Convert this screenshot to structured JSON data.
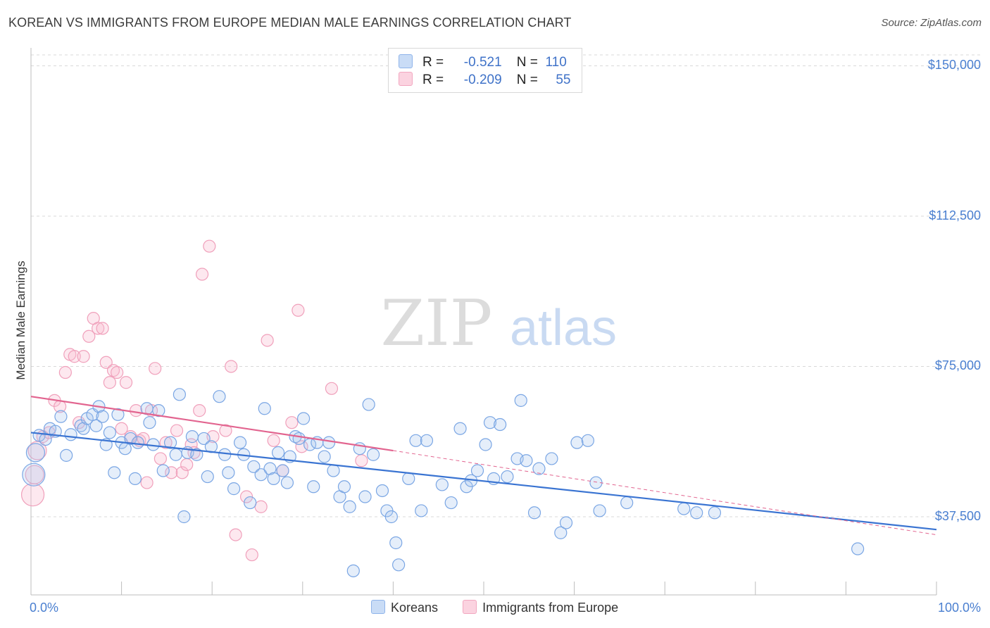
{
  "title": "KOREAN VS IMMIGRANTS FROM EUROPE MEDIAN MALE EARNINGS CORRELATION CHART",
  "source": "Source: ZipAtlas.com",
  "watermark": {
    "zip": "ZIP",
    "atlas": "atlas"
  },
  "stats": {
    "row1": {
      "r_label": "R =",
      "r_value": "-0.521",
      "n_label": "N =",
      "n_value": "110",
      "color": "#8fb4ea"
    },
    "row2": {
      "r_label": "R =",
      "r_value": "-0.209",
      "n_label": "N =",
      "n_value": "55",
      "color": "#f2a7c0"
    }
  },
  "legend": [
    {
      "label": "Koreans",
      "color": "#8fb4ea"
    },
    {
      "label": "Immigrants from Europe",
      "color": "#f2a7c0"
    }
  ],
  "chart_data": {
    "type": "scatter",
    "title": "KOREAN VS IMMIGRANTS FROM EUROPE MEDIAN MALE EARNINGS CORRELATION CHART",
    "xlabel": "",
    "ylabel": "Median Male Earnings",
    "xlim": [
      0,
      100
    ],
    "ylim": [
      18000,
      155000
    ],
    "x_tick_labels": [
      "0.0%",
      "100.0%"
    ],
    "y_ticks": [
      37500,
      75000,
      112500,
      150000
    ],
    "y_tick_labels": [
      "$37,500",
      "$75,000",
      "$112,500",
      "$150,000"
    ],
    "grid": true,
    "legend_position": "bottom-center",
    "series": [
      {
        "name": "Koreans",
        "color": "#8fb4ea",
        "trend": {
          "x": [
            0,
            100
          ],
          "y": [
            58500,
            34300
          ],
          "color": "#3a74d2"
        },
        "points": [
          {
            "x": 0.3,
            "y": 48000,
            "s": 3
          },
          {
            "x": 0.5,
            "y": 53500,
            "s": 2
          },
          {
            "x": 0.9,
            "y": 57800,
            "s": 1
          },
          {
            "x": 1.6,
            "y": 56800,
            "s": 1
          },
          {
            "x": 2.1,
            "y": 59500,
            "s": 1
          },
          {
            "x": 2.7,
            "y": 58800,
            "s": 1
          },
          {
            "x": 3.3,
            "y": 62500,
            "s": 1
          },
          {
            "x": 3.9,
            "y": 52800,
            "s": 1
          },
          {
            "x": 4.4,
            "y": 58000,
            "s": 1
          },
          {
            "x": 5.5,
            "y": 60200,
            "s": 1
          },
          {
            "x": 5.8,
            "y": 59500,
            "s": 1
          },
          {
            "x": 6.2,
            "y": 62000,
            "s": 1
          },
          {
            "x": 6.8,
            "y": 63000,
            "s": 1
          },
          {
            "x": 7.2,
            "y": 60200,
            "s": 1
          },
          {
            "x": 7.5,
            "y": 65000,
            "s": 1
          },
          {
            "x": 7.9,
            "y": 62500,
            "s": 1
          },
          {
            "x": 8.3,
            "y": 55500,
            "s": 1
          },
          {
            "x": 8.7,
            "y": 58500,
            "s": 1
          },
          {
            "x": 9.2,
            "y": 48500,
            "s": 1
          },
          {
            "x": 9.6,
            "y": 63000,
            "s": 1
          },
          {
            "x": 10.0,
            "y": 56000,
            "s": 1
          },
          {
            "x": 10.4,
            "y": 54500,
            "s": 1
          },
          {
            "x": 11.0,
            "y": 57000,
            "s": 1
          },
          {
            "x": 11.5,
            "y": 47000,
            "s": 1
          },
          {
            "x": 11.8,
            "y": 56000,
            "s": 1
          },
          {
            "x": 12.8,
            "y": 64500,
            "s": 1
          },
          {
            "x": 13.1,
            "y": 61000,
            "s": 1
          },
          {
            "x": 13.5,
            "y": 55500,
            "s": 1
          },
          {
            "x": 14.1,
            "y": 64000,
            "s": 1
          },
          {
            "x": 14.6,
            "y": 49000,
            "s": 1
          },
          {
            "x": 15.4,
            "y": 56000,
            "s": 1
          },
          {
            "x": 16.0,
            "y": 53000,
            "s": 1
          },
          {
            "x": 16.4,
            "y": 68000,
            "s": 1
          },
          {
            "x": 16.9,
            "y": 37500,
            "s": 1
          },
          {
            "x": 17.3,
            "y": 53500,
            "s": 1
          },
          {
            "x": 17.8,
            "y": 57500,
            "s": 1
          },
          {
            "x": 18.3,
            "y": 53000,
            "s": 1
          },
          {
            "x": 19.1,
            "y": 57000,
            "s": 1
          },
          {
            "x": 19.5,
            "y": 47500,
            "s": 1
          },
          {
            "x": 19.9,
            "y": 55000,
            "s": 1
          },
          {
            "x": 20.8,
            "y": 67500,
            "s": 1
          },
          {
            "x": 21.4,
            "y": 53000,
            "s": 1
          },
          {
            "x": 21.8,
            "y": 48500,
            "s": 1
          },
          {
            "x": 22.4,
            "y": 44500,
            "s": 1
          },
          {
            "x": 23.1,
            "y": 56000,
            "s": 1
          },
          {
            "x": 23.5,
            "y": 53000,
            "s": 1
          },
          {
            "x": 24.2,
            "y": 41000,
            "s": 1
          },
          {
            "x": 24.6,
            "y": 50000,
            "s": 1
          },
          {
            "x": 25.4,
            "y": 48000,
            "s": 1
          },
          {
            "x": 25.8,
            "y": 64500,
            "s": 1
          },
          {
            "x": 26.4,
            "y": 49500,
            "s": 1
          },
          {
            "x": 26.8,
            "y": 47000,
            "s": 1
          },
          {
            "x": 27.3,
            "y": 53500,
            "s": 1
          },
          {
            "x": 27.8,
            "y": 49000,
            "s": 1
          },
          {
            "x": 28.3,
            "y": 46000,
            "s": 1
          },
          {
            "x": 28.6,
            "y": 52500,
            "s": 1
          },
          {
            "x": 29.2,
            "y": 57500,
            "s": 1
          },
          {
            "x": 29.6,
            "y": 57000,
            "s": 1
          },
          {
            "x": 30.1,
            "y": 62000,
            "s": 1
          },
          {
            "x": 30.8,
            "y": 55500,
            "s": 1
          },
          {
            "x": 31.2,
            "y": 45000,
            "s": 1
          },
          {
            "x": 31.6,
            "y": 56000,
            "s": 1
          },
          {
            "x": 32.4,
            "y": 52500,
            "s": 1
          },
          {
            "x": 32.9,
            "y": 56000,
            "s": 1
          },
          {
            "x": 33.4,
            "y": 49000,
            "s": 1
          },
          {
            "x": 34.1,
            "y": 42500,
            "s": 1
          },
          {
            "x": 34.6,
            "y": 45000,
            "s": 1
          },
          {
            "x": 35.2,
            "y": 40000,
            "s": 1
          },
          {
            "x": 35.6,
            "y": 24000,
            "s": 1
          },
          {
            "x": 36.3,
            "y": 54500,
            "s": 1
          },
          {
            "x": 36.9,
            "y": 42500,
            "s": 1
          },
          {
            "x": 37.3,
            "y": 65500,
            "s": 1
          },
          {
            "x": 37.8,
            "y": 53000,
            "s": 1
          },
          {
            "x": 38.8,
            "y": 44000,
            "s": 1
          },
          {
            "x": 39.3,
            "y": 39000,
            "s": 1
          },
          {
            "x": 39.8,
            "y": 37500,
            "s": 1
          },
          {
            "x": 40.3,
            "y": 31000,
            "s": 1
          },
          {
            "x": 40.6,
            "y": 25500,
            "s": 1
          },
          {
            "x": 41.7,
            "y": 47000,
            "s": 1
          },
          {
            "x": 42.5,
            "y": 56500,
            "s": 1
          },
          {
            "x": 43.1,
            "y": 39000,
            "s": 1
          },
          {
            "x": 43.7,
            "y": 56500,
            "s": 1
          },
          {
            "x": 45.4,
            "y": 45500,
            "s": 1
          },
          {
            "x": 46.4,
            "y": 41000,
            "s": 1
          },
          {
            "x": 47.4,
            "y": 59500,
            "s": 1
          },
          {
            "x": 48.1,
            "y": 45000,
            "s": 1
          },
          {
            "x": 48.6,
            "y": 46500,
            "s": 1
          },
          {
            "x": 49.3,
            "y": 49000,
            "s": 1
          },
          {
            "x": 50.2,
            "y": 55500,
            "s": 1
          },
          {
            "x": 50.7,
            "y": 61000,
            "s": 1
          },
          {
            "x": 51.1,
            "y": 47000,
            "s": 1
          },
          {
            "x": 51.8,
            "y": 60500,
            "s": 1
          },
          {
            "x": 52.6,
            "y": 47500,
            "s": 1
          },
          {
            "x": 53.7,
            "y": 52000,
            "s": 1
          },
          {
            "x": 54.1,
            "y": 66500,
            "s": 1
          },
          {
            "x": 54.7,
            "y": 51500,
            "s": 1
          },
          {
            "x": 55.6,
            "y": 38500,
            "s": 1
          },
          {
            "x": 56.1,
            "y": 49500,
            "s": 1
          },
          {
            "x": 57.5,
            "y": 52000,
            "s": 1
          },
          {
            "x": 58.5,
            "y": 33500,
            "s": 1
          },
          {
            "x": 59.1,
            "y": 36000,
            "s": 1
          },
          {
            "x": 60.3,
            "y": 56000,
            "s": 1
          },
          {
            "x": 61.5,
            "y": 56500,
            "s": 1
          },
          {
            "x": 62.4,
            "y": 46000,
            "s": 1
          },
          {
            "x": 62.8,
            "y": 39000,
            "s": 1
          },
          {
            "x": 65.8,
            "y": 41000,
            "s": 1
          },
          {
            "x": 72.1,
            "y": 39500,
            "s": 1
          },
          {
            "x": 73.5,
            "y": 38500,
            "s": 1
          },
          {
            "x": 75.5,
            "y": 38500,
            "s": 1
          },
          {
            "x": 91.3,
            "y": 29500,
            "s": 1
          }
        ]
      },
      {
        "name": "Immigrants from Europe",
        "color": "#f2a7c0",
        "trend": {
          "x": [
            0,
            40
          ],
          "y": [
            67500,
            54000
          ],
          "color": "#e2648f",
          "dashed_extension_to": [
            100,
            33000
          ]
        },
        "points": [
          {
            "x": 0.2,
            "y": 43000,
            "s": 3
          },
          {
            "x": 0.4,
            "y": 48000,
            "s": 2
          },
          {
            "x": 0.7,
            "y": 54000,
            "s": 2
          },
          {
            "x": 1.3,
            "y": 57500,
            "s": 1
          },
          {
            "x": 2.0,
            "y": 58500,
            "s": 1
          },
          {
            "x": 2.6,
            "y": 66500,
            "s": 1
          },
          {
            "x": 3.2,
            "y": 65000,
            "s": 1
          },
          {
            "x": 3.8,
            "y": 73500,
            "s": 1
          },
          {
            "x": 4.3,
            "y": 78000,
            "s": 1
          },
          {
            "x": 4.8,
            "y": 77500,
            "s": 1
          },
          {
            "x": 5.3,
            "y": 61000,
            "s": 1
          },
          {
            "x": 5.8,
            "y": 77500,
            "s": 1
          },
          {
            "x": 6.4,
            "y": 82500,
            "s": 1
          },
          {
            "x": 6.9,
            "y": 87000,
            "s": 1
          },
          {
            "x": 7.4,
            "y": 84500,
            "s": 1
          },
          {
            "x": 7.9,
            "y": 84500,
            "s": 1
          },
          {
            "x": 8.3,
            "y": 76000,
            "s": 1
          },
          {
            "x": 8.7,
            "y": 71000,
            "s": 1
          },
          {
            "x": 9.1,
            "y": 74000,
            "s": 1
          },
          {
            "x": 9.5,
            "y": 73500,
            "s": 1
          },
          {
            "x": 10.0,
            "y": 59500,
            "s": 1
          },
          {
            "x": 10.5,
            "y": 71000,
            "s": 1
          },
          {
            "x": 11.0,
            "y": 57500,
            "s": 1
          },
          {
            "x": 11.6,
            "y": 64000,
            "s": 1
          },
          {
            "x": 12.0,
            "y": 56500,
            "s": 1
          },
          {
            "x": 12.4,
            "y": 57000,
            "s": 1
          },
          {
            "x": 12.8,
            "y": 46000,
            "s": 1
          },
          {
            "x": 13.3,
            "y": 64000,
            "s": 1
          },
          {
            "x": 13.7,
            "y": 74500,
            "s": 1
          },
          {
            "x": 14.3,
            "y": 52000,
            "s": 1
          },
          {
            "x": 14.9,
            "y": 56000,
            "s": 1
          },
          {
            "x": 15.5,
            "y": 48500,
            "s": 1
          },
          {
            "x": 16.1,
            "y": 59000,
            "s": 1
          },
          {
            "x": 16.7,
            "y": 48500,
            "s": 1
          },
          {
            "x": 17.2,
            "y": 50500,
            "s": 1
          },
          {
            "x": 17.7,
            "y": 55500,
            "s": 1
          },
          {
            "x": 18.0,
            "y": 53500,
            "s": 1
          },
          {
            "x": 18.6,
            "y": 64000,
            "s": 1
          },
          {
            "x": 18.9,
            "y": 98000,
            "s": 1
          },
          {
            "x": 19.7,
            "y": 105000,
            "s": 1
          },
          {
            "x": 20.1,
            "y": 57500,
            "s": 1
          },
          {
            "x": 21.5,
            "y": 59000,
            "s": 1
          },
          {
            "x": 22.1,
            "y": 75000,
            "s": 1
          },
          {
            "x": 22.6,
            "y": 33000,
            "s": 1
          },
          {
            "x": 23.8,
            "y": 42500,
            "s": 1
          },
          {
            "x": 24.4,
            "y": 28000,
            "s": 1
          },
          {
            "x": 25.4,
            "y": 40000,
            "s": 1
          },
          {
            "x": 26.1,
            "y": 81500,
            "s": 1
          },
          {
            "x": 26.8,
            "y": 56500,
            "s": 1
          },
          {
            "x": 27.8,
            "y": 49000,
            "s": 1
          },
          {
            "x": 28.8,
            "y": 61000,
            "s": 1
          },
          {
            "x": 29.5,
            "y": 89000,
            "s": 1
          },
          {
            "x": 29.9,
            "y": 55000,
            "s": 1
          },
          {
            "x": 33.2,
            "y": 69500,
            "s": 1
          },
          {
            "x": 36.5,
            "y": 51500,
            "s": 1
          }
        ]
      }
    ]
  }
}
